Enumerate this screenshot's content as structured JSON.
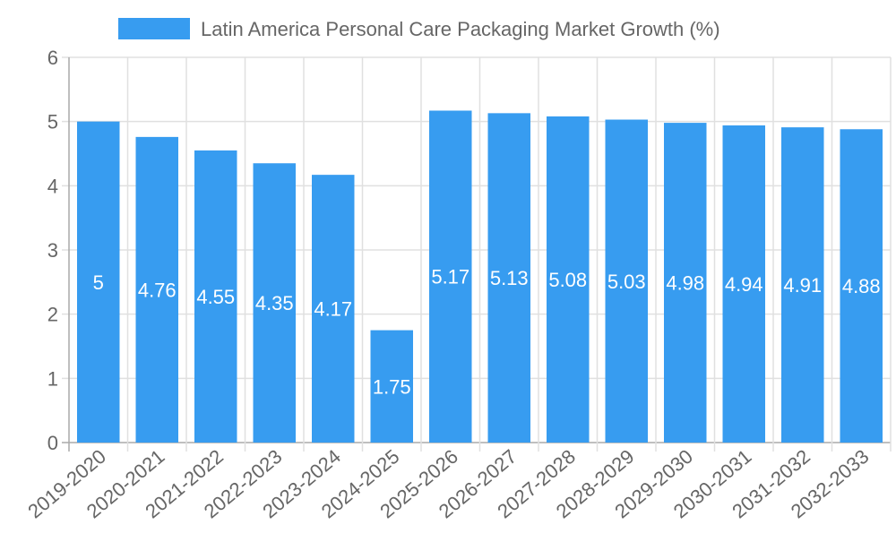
{
  "chart_data": {
    "type": "bar",
    "title": "",
    "legend": {
      "label": "Latin America Personal Care Packaging Market Growth (%)",
      "placement": "top-center"
    },
    "categories": [
      "2019-2020",
      "2020-2021",
      "2021-2022",
      "2022-2023",
      "2023-2024",
      "2024-2025",
      "2025-2026",
      "2026-2027",
      "2027-2028",
      "2028-2029",
      "2029-2030",
      "2030-2031",
      "2031-2032",
      "2032-2033"
    ],
    "values": [
      5,
      4.76,
      4.55,
      4.35,
      4.17,
      1.75,
      5.17,
      5.13,
      5.08,
      5.03,
      4.98,
      4.94,
      4.91,
      4.88
    ],
    "xlabel": "",
    "ylabel": "",
    "ylim": [
      0,
      6
    ],
    "yticks": [
      0,
      1,
      2,
      3,
      4,
      5,
      6
    ],
    "grid": true,
    "colors": {
      "bar": "#379cf0",
      "text": "#666666",
      "grid": "#e0e0e0",
      "axis": "#aaaaaa",
      "label": "#ffffff"
    }
  }
}
